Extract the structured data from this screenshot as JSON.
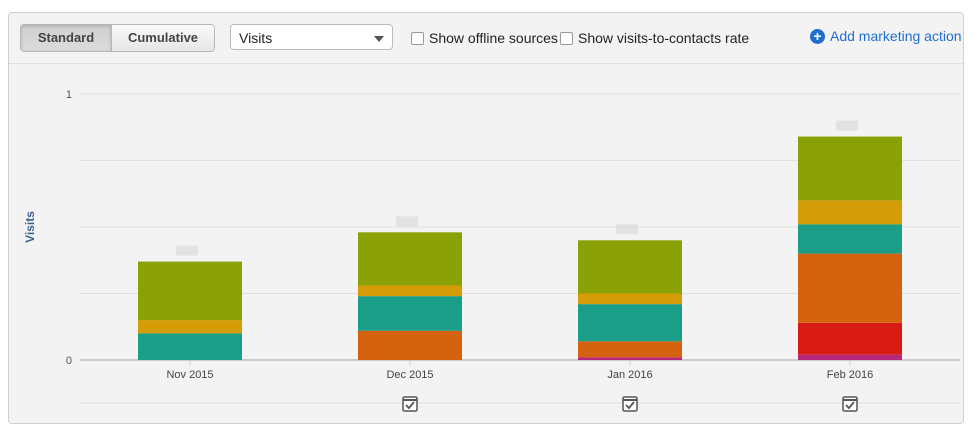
{
  "toolbar": {
    "standard": "Standard",
    "cumulative": "Cumulative",
    "metric": "Visits",
    "offline": "Show offline sources",
    "rate": "Show visits-to-contacts rate",
    "add": "Add marketing action"
  },
  "colors": {
    "accent": "#1f6fd1"
  },
  "chart_data": {
    "type": "bar",
    "stacked": true,
    "ylabel": "Visits",
    "yticks": [
      "0",
      "",
      "",
      "",
      "1"
    ],
    "ylim": [
      0,
      1
    ],
    "grid": true,
    "categories": [
      "Nov 2015",
      "Dec 2015",
      "Jan 2016",
      "Feb 2016"
    ],
    "series": [
      {
        "color": "#b5287c",
        "values": [
          0,
          0,
          0.01,
          0.02
        ]
      },
      {
        "color": "#d81b14",
        "values": [
          0,
          0,
          0,
          0.12
        ]
      },
      {
        "color": "#d4620f",
        "values": [
          0,
          0.11,
          0.06,
          0.26
        ]
      },
      {
        "color": "#1a9e88",
        "values": [
          0.1,
          0.13,
          0.14,
          0.11
        ]
      },
      {
        "color": "#d49c07",
        "values": [
          0.05,
          0.04,
          0.04,
          0.09
        ]
      },
      {
        "color": "#8aa105",
        "values": [
          0.22,
          0.2,
          0.2,
          0.24
        ]
      }
    ],
    "marketing_actions": [
      false,
      true,
      true,
      true
    ]
  }
}
